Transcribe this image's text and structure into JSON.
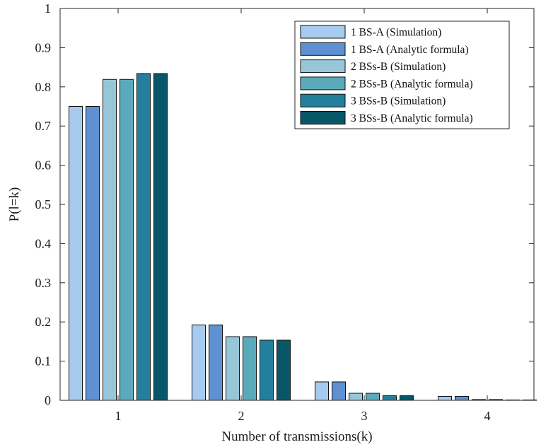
{
  "chart_data": {
    "type": "bar",
    "title": "",
    "xlabel": "Number of transmissions(k)",
    "ylabel": "P(l=k)",
    "categories": [
      "1",
      "2",
      "3",
      "4"
    ],
    "ylim": [
      0,
      1
    ],
    "yticks": [
      "0",
      "0.1",
      "0.2",
      "0.3",
      "0.4",
      "0.5",
      "0.6",
      "0.7",
      "0.8",
      "0.9",
      "1"
    ],
    "grid": false,
    "legend_position": "top-right",
    "series": [
      {
        "name": "1 BS-A (Simulation)",
        "color": "#a6cbee",
        "values": [
          0.75,
          0.1925,
          0.047,
          0.01
        ]
      },
      {
        "name": "1 BS-A (Analytic formula)",
        "color": "#5e90d2",
        "values": [
          0.75,
          0.1925,
          0.047,
          0.01
        ]
      },
      {
        "name": "2 BSs-B (Simulation)",
        "color": "#98c6d9",
        "values": [
          0.819,
          0.1625,
          0.018,
          0.002
        ]
      },
      {
        "name": "2 BSs-B (Analytic formula)",
        "color": "#5baabb",
        "values": [
          0.819,
          0.1625,
          0.018,
          0.002
        ]
      },
      {
        "name": "3 BSs-B (Simulation)",
        "color": "#247f9c",
        "values": [
          0.834,
          0.1535,
          0.012,
          0.001
        ]
      },
      {
        "name": "3 BSs-B (Analytic formula)",
        "color": "#075769",
        "values": [
          0.834,
          0.1535,
          0.012,
          0.001
        ]
      }
    ]
  }
}
